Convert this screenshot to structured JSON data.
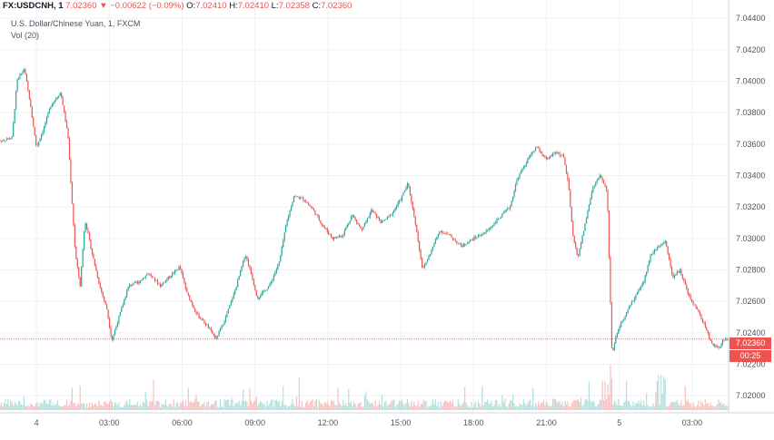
{
  "header": {
    "symbol": "FX:USDCNH, 1",
    "last": "7.02360",
    "arrow": "▼",
    "change": "−0.00622 (−0.09%)",
    "o_label": "O:",
    "o_value": "7.02410",
    "h_label": "H:",
    "h_value": "7.02410",
    "l_label": "L:",
    "l_value": "7.02358",
    "c_label": "C:",
    "c_value": "7.02360"
  },
  "legend": {
    "title": "U.S. Dollar/Chinese Yuan, 1, FXCM",
    "volume": "Vol (20)"
  },
  "price_tag": {
    "value": "7.02360",
    "countdown": "00:25"
  },
  "colors": {
    "up": "#26a69a",
    "down": "#ef5350",
    "vol_up": "#b2dfdb",
    "vol_down": "#f5c0be",
    "grid": "#eef0f3",
    "line": "#ef5350"
  },
  "chart_data": {
    "type": "candlestick",
    "title": "U.S. Dollar/Chinese Yuan, 1, FXCM",
    "price_axis": {
      "ticks": [
        7.044,
        7.042,
        7.04,
        7.038,
        7.036,
        7.034,
        7.032,
        7.03,
        7.028,
        7.026,
        7.024,
        7.022,
        7.02
      ],
      "tick_labels": [
        "7.04400",
        "7.04200",
        "7.04000",
        "7.03800",
        "7.03600",
        "7.03400",
        "7.03200",
        "7.03000",
        "7.02800",
        "7.02600",
        "7.02400",
        "7.02200",
        "7.02000"
      ],
      "range": [
        7.0192,
        7.0447
      ]
    },
    "time_axis": {
      "labels": [
        "4",
        "03:00",
        "06:00",
        "09:00",
        "12:00",
        "15:00",
        "18:00",
        "21:00",
        "5",
        "03:00"
      ],
      "hours": [
        0,
        3,
        6,
        9,
        12,
        15,
        18,
        21,
        24,
        27
      ],
      "range": [
        -1.5,
        28.5
      ]
    },
    "last_price": 7.0236,
    "price_path": [
      [
        -1.5,
        7.0362
      ],
      [
        -1.0,
        7.0364
      ],
      [
        -0.8,
        7.04
      ],
      [
        -0.5,
        7.0408
      ],
      [
        -0.3,
        7.039
      ],
      [
        0.0,
        7.0358
      ],
      [
        0.3,
        7.037
      ],
      [
        0.6,
        7.0385
      ],
      [
        1.0,
        7.0393
      ],
      [
        1.3,
        7.0365
      ],
      [
        1.6,
        7.029
      ],
      [
        1.8,
        7.027
      ],
      [
        2.0,
        7.0312
      ],
      [
        2.3,
        7.029
      ],
      [
        2.6,
        7.027
      ],
      [
        2.9,
        7.0255
      ],
      [
        3.1,
        7.0235
      ],
      [
        3.4,
        7.025
      ],
      [
        3.8,
        7.027
      ],
      [
        4.2,
        7.0272
      ],
      [
        4.6,
        7.0278
      ],
      [
        5.1,
        7.027
      ],
      [
        5.5,
        7.0276
      ],
      [
        5.9,
        7.0282
      ],
      [
        6.2,
        7.0265
      ],
      [
        6.6,
        7.0252
      ],
      [
        7.0,
        7.0245
      ],
      [
        7.4,
        7.0236
      ],
      [
        7.8,
        7.025
      ],
      [
        8.2,
        7.0268
      ],
      [
        8.6,
        7.029
      ],
      [
        8.8,
        7.028
      ],
      [
        9.1,
        7.0262
      ],
      [
        9.6,
        7.027
      ],
      [
        10.0,
        7.0285
      ],
      [
        10.3,
        7.031
      ],
      [
        10.6,
        7.0327
      ],
      [
        11.0,
        7.0325
      ],
      [
        11.4,
        7.0318
      ],
      [
        11.8,
        7.0308
      ],
      [
        12.2,
        7.03
      ],
      [
        12.6,
        7.0302
      ],
      [
        13.0,
        7.0315
      ],
      [
        13.4,
        7.0305
      ],
      [
        13.8,
        7.0318
      ],
      [
        14.2,
        7.031
      ],
      [
        14.6,
        7.0315
      ],
      [
        15.0,
        7.0325
      ],
      [
        15.3,
        7.0335
      ],
      [
        15.6,
        7.031
      ],
      [
        15.9,
        7.028
      ],
      [
        16.2,
        7.029
      ],
      [
        16.6,
        7.0305
      ],
      [
        17.0,
        7.0302
      ],
      [
        17.5,
        7.0295
      ],
      [
        18.0,
        7.03
      ],
      [
        18.5,
        7.0304
      ],
      [
        19.0,
        7.0312
      ],
      [
        19.5,
        7.032
      ],
      [
        19.8,
        7.0338
      ],
      [
        20.3,
        7.0352
      ],
      [
        20.6,
        7.0358
      ],
      [
        21.0,
        7.035
      ],
      [
        21.4,
        7.0355
      ],
      [
        21.7,
        7.0352
      ],
      [
        21.9,
        7.0335
      ],
      [
        22.1,
        7.03
      ],
      [
        22.3,
        7.0288
      ],
      [
        22.6,
        7.031
      ],
      [
        22.9,
        7.0332
      ],
      [
        23.2,
        7.034
      ],
      [
        23.5,
        7.033
      ],
      [
        23.7,
        7.0225
      ],
      [
        23.9,
        7.024
      ],
      [
        24.2,
        7.025
      ],
      [
        24.6,
        7.0262
      ],
      [
        25.0,
        7.0272
      ],
      [
        25.3,
        7.029
      ],
      [
        25.6,
        7.0295
      ],
      [
        25.9,
        7.0298
      ],
      [
        26.2,
        7.0275
      ],
      [
        26.5,
        7.028
      ],
      [
        26.9,
        7.0262
      ],
      [
        27.2,
        7.0255
      ],
      [
        27.5,
        7.0245
      ],
      [
        27.8,
        7.0233
      ],
      [
        28.1,
        7.023
      ],
      [
        28.3,
        7.0236
      ],
      [
        28.5,
        7.0236
      ]
    ]
  }
}
